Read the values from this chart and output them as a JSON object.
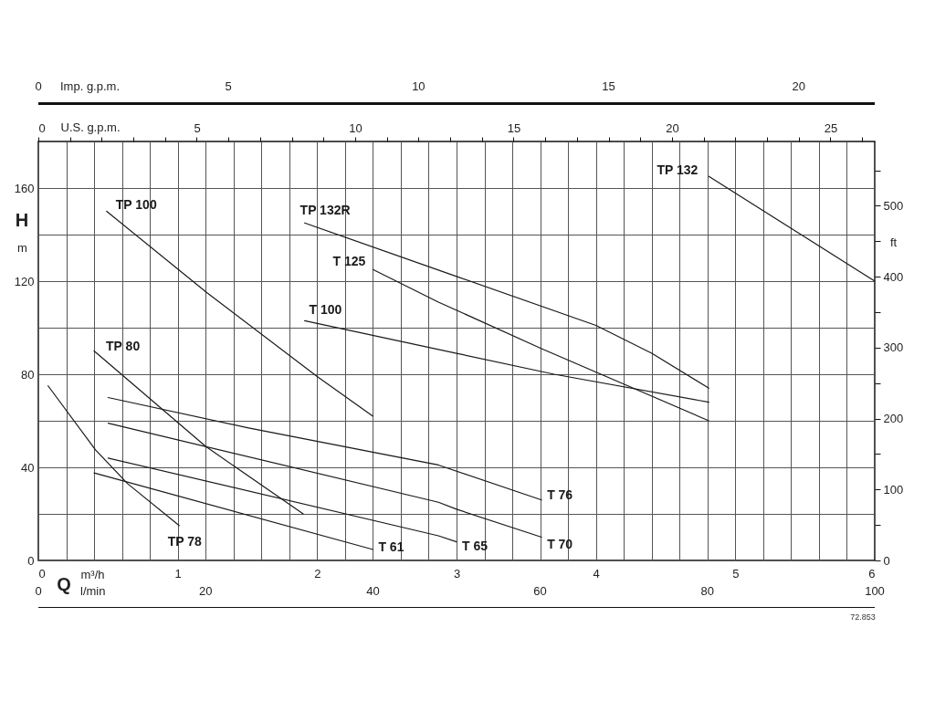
{
  "chart_data": {
    "type": "line",
    "xlabel": "m³/h",
    "ylabel": "m",
    "y2label": "ft",
    "x2label": "U.S. g.p.m.",
    "annotations": [
      "Q",
      "H",
      "72.853",
      "Imp. g.p.m.",
      "0",
      "5",
      "10",
      "15",
      "20",
      "l/min",
      "0",
      "20",
      "40",
      "60",
      "80",
      "100"
    ],
    "grid": true,
    "marker": "none",
    "xlim": [
      0,
      6
    ],
    "xticks": [
      0,
      {
        "value": 0.2,
        "label": null
      },
      {
        "value": 0.4,
        "label": null
      },
      {
        "value": 0.6,
        "label": null
      },
      {
        "value": 0.8,
        "label": null
      },
      1,
      {
        "value": 1.2,
        "label": null
      },
      {
        "value": 1.4,
        "label": null
      },
      {
        "value": 1.6,
        "label": null
      },
      {
        "value": 1.8,
        "label": null
      },
      2,
      {
        "value": 2.2,
        "label": null
      },
      {
        "value": 2.4,
        "label": null
      },
      {
        "value": 2.6,
        "label": null
      },
      {
        "value": 2.8,
        "label": null
      },
      3,
      {
        "value": 3.2,
        "label": null
      },
      {
        "value": 3.4,
        "label": null
      },
      {
        "value": 3.6,
        "label": null
      },
      {
        "value": 3.8,
        "label": null
      },
      4,
      {
        "value": 4.2,
        "label": null
      },
      {
        "value": 4.4,
        "label": null
      },
      {
        "value": 4.6,
        "label": null
      },
      {
        "value": 4.8,
        "label": null
      },
      5,
      {
        "value": 5.2,
        "label": null
      },
      {
        "value": 5.4,
        "label": null
      },
      {
        "value": 5.6,
        "label": null
      },
      {
        "value": 5.8,
        "label": null
      },
      6
    ],
    "ylim": [
      0,
      180
    ],
    "yticks": [
      0,
      {
        "value": 20,
        "label": null
      },
      40,
      {
        "value": 60,
        "label": null
      },
      80,
      {
        "value": 100,
        "label": null
      },
      120,
      {
        "value": 140,
        "label": null
      },
      160
    ],
    "y2lim": [
      0,
      590.6
    ],
    "y2ticks": [
      0,
      {
        "value": 50,
        "label": null
      },
      100,
      {
        "value": 150,
        "label": null
      },
      200,
      {
        "value": 250,
        "label": null
      },
      300,
      {
        "value": 350,
        "label": null
      },
      400,
      {
        "value": 450,
        "label": null
      },
      500,
      {
        "value": 550,
        "label": null
      }
    ],
    "x2lim": [
      0,
      26.4
    ],
    "x2ticks": [
      0,
      {
        "value": 1,
        "label": null
      },
      {
        "value": 2,
        "label": null
      },
      {
        "value": 3,
        "label": null
      },
      {
        "value": 4,
        "label": null
      },
      5,
      {
        "value": 6,
        "label": null
      },
      {
        "value": 7,
        "label": null
      },
      {
        "value": 8,
        "label": null
      },
      {
        "value": 9,
        "label": null
      },
      10,
      {
        "value": 11,
        "label": null
      },
      {
        "value": 12,
        "label": null
      },
      {
        "value": 13,
        "label": null
      },
      {
        "value": 14,
        "label": null
      },
      15,
      {
        "value": 16,
        "label": null
      },
      {
        "value": 17,
        "label": null
      },
      {
        "value": 18,
        "label": null
      },
      {
        "value": 19,
        "label": null
      },
      20,
      {
        "value": 21,
        "label": null
      },
      {
        "value": 22,
        "label": null
      },
      {
        "value": 23,
        "label": null
      },
      {
        "value": 24,
        "label": null
      },
      25,
      {
        "value": 26,
        "label": null
      }
    ],
    "series": [
      {
        "name": "TP 100",
        "color": "#1a1a1a",
        "x": [
          0.49,
          1.21,
          2.0,
          2.4
        ],
        "values": [
          150,
          115,
          79,
          62
        ]
      },
      {
        "name": "TP 132R",
        "color": "#1a1a1a",
        "x": [
          1.91,
          3.0,
          4.0,
          4.4,
          4.81
        ],
        "values": [
          145,
          122,
          101,
          89,
          74
        ]
      },
      {
        "name": "T 125",
        "color": "#1a1a1a",
        "x": [
          2.4,
          2.87,
          3.61,
          4.81
        ],
        "values": [
          125,
          111,
          91,
          60
        ]
      },
      {
        "name": "T 100",
        "color": "#1a1a1a",
        "x": [
          1.91,
          3.0,
          3.7,
          4.81
        ],
        "values": [
          103,
          89,
          80,
          68
        ]
      },
      {
        "name": "TP 132",
        "color": "#1a1a1a",
        "x": [
          4.81,
          6.0
        ],
        "values": [
          165,
          120
        ]
      },
      {
        "name": "TP 80",
        "color": "#1a1a1a",
        "x": [
          0.4,
          1.2,
          1.9
        ],
        "values": [
          90,
          49,
          20
        ]
      },
      {
        "name": "TP 78",
        "color": "#1a1a1a",
        "x": [
          0.07,
          0.41,
          0.64,
          1.01
        ],
        "values": [
          75,
          47.5,
          33,
          15
        ]
      },
      {
        "name": "T 76",
        "color": "#1a1a1a",
        "x": [
          0.5,
          1.5,
          2.87,
          3.61
        ],
        "values": [
          70,
          57,
          41,
          26
        ]
      },
      {
        "name": "T 70",
        "color": "#1a1a1a",
        "x": [
          0.5,
          2.87,
          3.0,
          3.61
        ],
        "values": [
          59,
          25,
          22,
          10
        ]
      },
      {
        "name": "T 65",
        "color": "#1a1a1a",
        "x": [
          0.5,
          2.87,
          3.0
        ],
        "values": [
          44,
          10.6,
          8
        ]
      },
      {
        "name": "T 61",
        "color": "#1a1a1a",
        "x": [
          0.4,
          2.4
        ],
        "values": [
          37.6,
          4.7
        ]
      }
    ]
  }
}
